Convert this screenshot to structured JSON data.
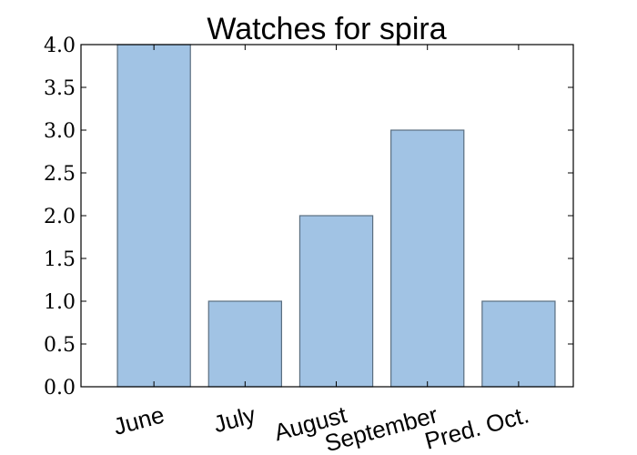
{
  "chart_data": {
    "type": "bar",
    "title": "Watches for spira",
    "xlabel": "",
    "ylabel": "",
    "categories": [
      "June",
      "July",
      "August",
      "September",
      "Pred. Oct."
    ],
    "values": [
      4,
      1,
      2,
      3,
      1
    ],
    "ylim": [
      0,
      4
    ],
    "yticks": [
      "0.0",
      "0.5",
      "1.0",
      "1.5",
      "2.0",
      "2.5",
      "3.0",
      "3.5",
      "4.0"
    ],
    "grid": false,
    "legend": "none",
    "colors": {
      "bar_fill": "#a1c3e4",
      "bar_stroke": "#5a6e80",
      "axis": "#000000",
      "background": "#ffffff"
    }
  }
}
